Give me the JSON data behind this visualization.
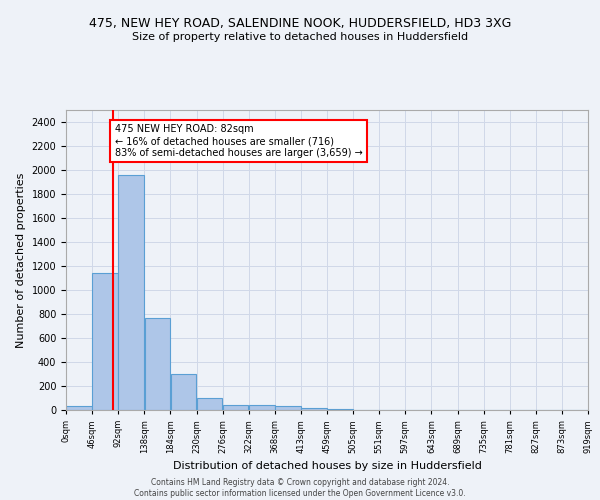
{
  "title_line1": "475, NEW HEY ROAD, SALENDINE NOOK, HUDDERSFIELD, HD3 3XG",
  "title_line2": "Size of property relative to detached houses in Huddersfield",
  "xlabel": "Distribution of detached houses by size in Huddersfield",
  "ylabel": "Number of detached properties",
  "bar_values": [
    35,
    1140,
    1960,
    770,
    300,
    100,
    45,
    40,
    30,
    20,
    10,
    0,
    0,
    0,
    0,
    0,
    0,
    0,
    0,
    0
  ],
  "bar_labels": [
    "0sqm",
    "46sqm",
    "92sqm",
    "138sqm",
    "184sqm",
    "230sqm",
    "276sqm",
    "322sqm",
    "368sqm",
    "413sqm",
    "459sqm",
    "505sqm",
    "551sqm",
    "597sqm",
    "643sqm",
    "689sqm",
    "735sqm",
    "781sqm",
    "827sqm",
    "873sqm",
    "919sqm"
  ],
  "bar_color": "#aec6e8",
  "bar_edge_color": "#5a9fd4",
  "vline_x": 82,
  "vline_color": "red",
  "annotation_text": "475 NEW HEY ROAD: 82sqm\n← 16% of detached houses are smaller (716)\n83% of semi-detached houses are larger (3,659) →",
  "ylim": [
    0,
    2500
  ],
  "yticks": [
    0,
    200,
    400,
    600,
    800,
    1000,
    1200,
    1400,
    1600,
    1800,
    2000,
    2200,
    2400
  ],
  "grid_color": "#d0d8e8",
  "background_color": "#eef2f8",
  "footer_line1": "Contains HM Land Registry data © Crown copyright and database right 2024.",
  "footer_line2": "Contains public sector information licensed under the Open Government Licence v3.0.",
  "bin_width": 46,
  "title1_fontsize": 9,
  "title2_fontsize": 8,
  "xlabel_fontsize": 8,
  "ylabel_fontsize": 8,
  "xtick_fontsize": 6,
  "ytick_fontsize": 7,
  "footer_fontsize": 5.5
}
